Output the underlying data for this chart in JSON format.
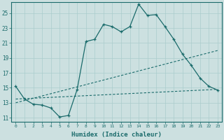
{
  "xlabel": "Humidex (Indice chaleur)",
  "bg_color": "#cce0e0",
  "grid_color": "#aacccc",
  "line_color": "#1a6b6b",
  "xlim": [
    -0.5,
    23.5
  ],
  "ylim": [
    10.5,
    26.5
  ],
  "yticks": [
    11,
    13,
    15,
    17,
    19,
    21,
    23,
    25
  ],
  "xticks": [
    0,
    1,
    2,
    3,
    4,
    5,
    6,
    7,
    8,
    9,
    10,
    11,
    12,
    13,
    14,
    15,
    16,
    17,
    18,
    19,
    20,
    21,
    22,
    23
  ],
  "series1": {
    "x": [
      0,
      1,
      2,
      3,
      4,
      5,
      6,
      7,
      8,
      9,
      10,
      11,
      12,
      13,
      14,
      15,
      16,
      17,
      18,
      19,
      20,
      21,
      22,
      23
    ],
    "y": [
      15.2,
      13.5,
      12.8,
      12.7,
      12.3,
      11.1,
      11.3,
      14.8,
      21.2,
      21.5,
      23.5,
      23.2,
      22.5,
      23.2,
      26.2,
      24.7,
      24.8,
      23.2,
      21.5,
      19.5,
      18.0,
      16.3,
      15.2,
      14.7
    ]
  },
  "series2": {
    "x": [
      0,
      23
    ],
    "y": [
      13.0,
      20.0
    ]
  },
  "series3": {
    "x": [
      0,
      23
    ],
    "y": [
      13.5,
      14.8
    ]
  }
}
